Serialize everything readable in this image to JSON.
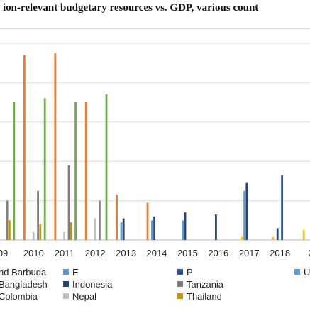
{
  "title_text": "ion-relevant budgetary resources vs. GDP, various count",
  "chart_data": {
    "type": "bar",
    "title": "ion-relevant budgetary resources vs. GDP, various count",
    "categories": [
      "09",
      "2010",
      "2011",
      "2012",
      "2013",
      "2014",
      "2015",
      "2016",
      "2017",
      "2018",
      "2"
    ],
    "ylim": [
      0,
      10
    ],
    "grid": true,
    "legend_position": "bottom",
    "series": [
      {
        "name": "nd Barbuda",
        "color": "#4472c4",
        "values": [
          null,
          null,
          null,
          null,
          null,
          null,
          null,
          null,
          null,
          null,
          null
        ]
      },
      {
        "name": "Bangladesh",
        "color": "#ed7d31",
        "values": [
          7.4,
          9.4,
          9.5,
          7.0,
          2.3,
          1.9,
          null,
          null,
          null,
          null,
          null
        ]
      },
      {
        "name": "Colombia",
        "color": "#ffc000",
        "values": [
          null,
          null,
          null,
          null,
          null,
          null,
          null,
          null,
          0.15,
          0.15,
          0.5
        ]
      },
      {
        "name": "E",
        "color": "#5b9bd5",
        "values": [
          null,
          null,
          null,
          null,
          0.9,
          1.0,
          1.0,
          null,
          2.5,
          null,
          null
        ]
      },
      {
        "name": "Indonesia",
        "color": "#264478",
        "values": [
          null,
          null,
          null,
          null,
          1.1,
          1.2,
          1.4,
          1.3,
          2.9,
          0.6,
          null
        ]
      },
      {
        "name": "Nepal",
        "color": "#bfbfbf",
        "values": [
          null,
          0.4,
          0.4,
          1.1,
          null,
          null,
          null,
          null,
          null,
          null,
          null
        ]
      },
      {
        "name": "P",
        "color": "#2f5597",
        "values": [
          null,
          null,
          null,
          null,
          null,
          null,
          null,
          null,
          null,
          3.3,
          null
        ]
      },
      {
        "name": "Tanzania",
        "color": "#7f7f7f",
        "values": [
          2.0,
          2.5,
          3.8,
          2.0,
          null,
          null,
          null,
          null,
          null,
          null,
          null
        ]
      },
      {
        "name": "Thailand",
        "color": "#c49500",
        "values": [
          1.0,
          0.8,
          0.9,
          null,
          null,
          null,
          null,
          null,
          null,
          null,
          null
        ]
      },
      {
        "name": "U",
        "color": "#5b9bd5",
        "values": [
          null,
          null,
          null,
          null,
          null,
          null,
          null,
          null,
          null,
          null,
          null
        ]
      },
      {
        "name": "",
        "color": "#70ad47",
        "values": [
          7.0,
          7.2,
          7.0,
          7.4,
          null,
          null,
          null,
          null,
          null,
          null,
          null
        ]
      }
    ]
  }
}
